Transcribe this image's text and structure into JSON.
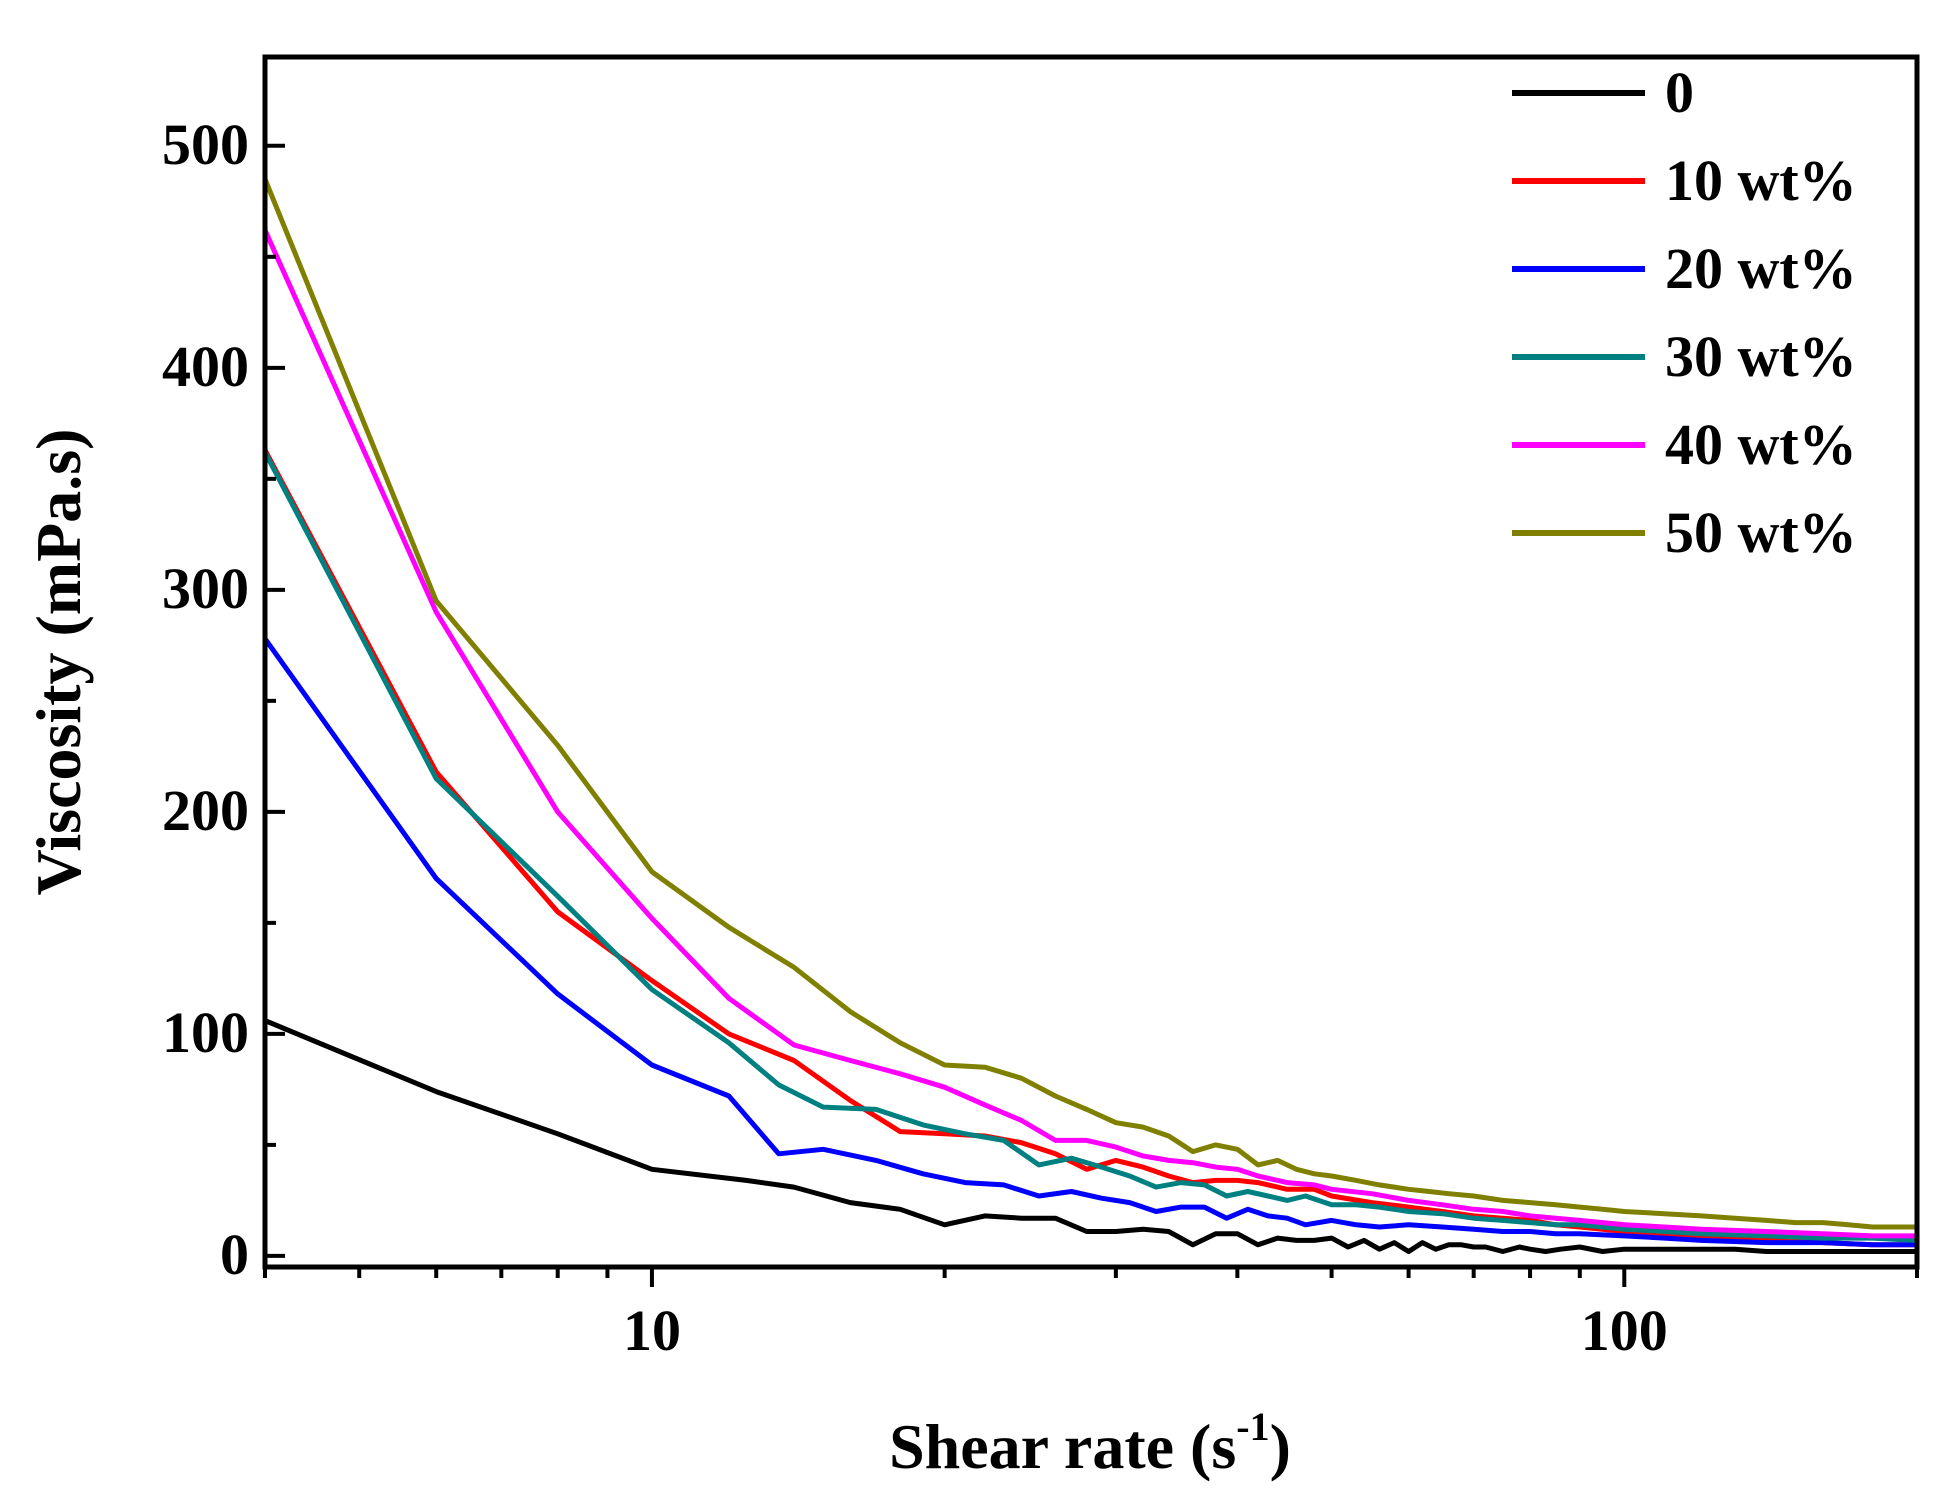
{
  "chart_data": {
    "type": "line",
    "xlabel": "Shear rate (s",
    "xlabel_sup": "-1",
    "xlabel_close": ")",
    "ylabel": "Viscosity (mPa.s)",
    "x_scale": "log",
    "xlim": [
      4,
      200
    ],
    "ylim": [
      -5,
      540
    ],
    "x_tick_labels": [
      {
        "value": 10,
        "label": "10"
      },
      {
        "value": 100,
        "label": "100"
      }
    ],
    "y_tick_labels": [
      {
        "value": 0,
        "label": "0"
      },
      {
        "value": 100,
        "label": "100"
      },
      {
        "value": 200,
        "label": "200"
      },
      {
        "value": 300,
        "label": "300"
      },
      {
        "value": 400,
        "label": "400"
      },
      {
        "value": 500,
        "label": "500"
      }
    ],
    "legend_position": "top-right",
    "series": [
      {
        "name": "0",
        "color": "#000000",
        "x": [
          4,
          6,
          8,
          10,
          12.5,
          14,
          16,
          18,
          20,
          22,
          24,
          26,
          28,
          30,
          32,
          34,
          36,
          38,
          40,
          42,
          44,
          46,
          48,
          50,
          52,
          54,
          56,
          58,
          60,
          62,
          64,
          66,
          68,
          70,
          72,
          75,
          78,
          80,
          83,
          86,
          90,
          95,
          100,
          110,
          120,
          130,
          140,
          150,
          160,
          170,
          180,
          200
        ],
        "y": [
          106,
          74,
          55,
          39,
          34,
          31,
          24,
          21,
          14,
          18,
          17,
          17,
          11,
          11,
          12,
          11,
          5,
          10,
          10,
          5,
          8,
          7,
          7,
          8,
          4,
          7,
          3,
          6,
          2,
          6,
          3,
          5,
          5,
          4,
          4,
          2,
          4,
          3,
          2,
          3,
          4,
          2,
          3,
          3,
          3,
          3,
          2,
          2,
          2,
          2,
          2,
          2
        ]
      },
      {
        "name": "10 wt%",
        "color": "#ff0000",
        "x": [
          4,
          6,
          8,
          10,
          12,
          14,
          16,
          18,
          20,
          22,
          24,
          26,
          28,
          30,
          32,
          34,
          36,
          38,
          40,
          42,
          45,
          48,
          50,
          55,
          60,
          65,
          70,
          75,
          80,
          85,
          90,
          100,
          110,
          120,
          140,
          160,
          180,
          200
        ],
        "y": [
          363,
          218,
          155,
          124,
          100,
          88,
          70,
          56,
          55,
          54,
          51,
          46,
          39,
          43,
          40,
          36,
          33,
          34,
          34,
          33,
          30,
          30,
          27,
          24,
          22,
          20,
          18,
          17,
          16,
          14,
          13,
          11,
          10,
          9,
          8,
          6,
          5,
          5
        ]
      },
      {
        "name": "20 wt%",
        "color": "#0000ff",
        "x": [
          4,
          6,
          8,
          10,
          12,
          13.5,
          15,
          17,
          19,
          21,
          23,
          25,
          27,
          29,
          31,
          33,
          35,
          37,
          39,
          41,
          43,
          45,
          47,
          50,
          53,
          56,
          60,
          65,
          70,
          75,
          80,
          85,
          90,
          100,
          110,
          120,
          140,
          160,
          180,
          200
        ],
        "y": [
          278,
          170,
          118,
          86,
          72,
          46,
          48,
          43,
          37,
          33,
          32,
          27,
          29,
          26,
          24,
          20,
          22,
          22,
          17,
          21,
          18,
          17,
          14,
          16,
          14,
          13,
          14,
          13,
          12,
          11,
          11,
          10,
          10,
          9,
          8,
          7,
          6,
          6,
          5,
          5
        ]
      },
      {
        "name": "30 wt%",
        "color": "#008080",
        "x": [
          4,
          6,
          8,
          10,
          12,
          13.5,
          15,
          17,
          19,
          21,
          23,
          25,
          27,
          29,
          31,
          33,
          35,
          37,
          39,
          41,
          43,
          45,
          47,
          50,
          53,
          56,
          60,
          65,
          70,
          75,
          80,
          85,
          90,
          100,
          110,
          120,
          140,
          160,
          180,
          200
        ],
        "y": [
          362,
          215,
          162,
          120,
          96,
          77,
          67,
          66,
          59,
          55,
          52,
          41,
          44,
          40,
          36,
          31,
          33,
          32,
          27,
          29,
          27,
          25,
          27,
          23,
          23,
          22,
          20,
          19,
          17,
          16,
          15,
          14,
          14,
          12,
          11,
          10,
          9,
          8,
          8,
          7
        ]
      },
      {
        "name": "40 wt%",
        "color": "#ff00ff",
        "x": [
          4,
          6,
          8,
          10,
          12,
          14,
          16,
          18,
          20,
          22,
          24,
          26,
          28,
          30,
          32,
          34,
          36,
          38,
          40,
          42,
          45,
          48,
          50,
          55,
          60,
          65,
          70,
          75,
          80,
          85,
          90,
          100,
          110,
          120,
          140,
          160,
          180,
          200
        ],
        "y": [
          462,
          290,
          200,
          152,
          116,
          95,
          88,
          82,
          76,
          68,
          61,
          52,
          52,
          49,
          45,
          43,
          42,
          40,
          39,
          36,
          33,
          32,
          30,
          28,
          25,
          23,
          21,
          20,
          18,
          17,
          16,
          14,
          13,
          12,
          11,
          10,
          9,
          9
        ]
      },
      {
        "name": "50 wt%",
        "color": "#808000",
        "x": [
          4,
          6,
          8,
          10,
          12,
          14,
          16,
          18,
          20,
          22,
          24,
          26,
          28,
          30,
          32,
          34,
          36,
          38,
          40,
          42,
          44,
          46,
          48,
          50,
          53,
          56,
          60,
          63,
          66,
          70,
          75,
          80,
          85,
          90,
          95,
          100,
          110,
          120,
          130,
          140,
          150,
          160,
          170,
          180,
          200
        ],
        "y": [
          485,
          295,
          230,
          173,
          148,
          130,
          110,
          96,
          86,
          85,
          80,
          72,
          66,
          60,
          58,
          54,
          47,
          50,
          48,
          41,
          43,
          39,
          37,
          36,
          34,
          32,
          30,
          29,
          28,
          27,
          25,
          24,
          23,
          22,
          21,
          20,
          19,
          18,
          17,
          16,
          15,
          15,
          14,
          13,
          13
        ]
      }
    ]
  }
}
